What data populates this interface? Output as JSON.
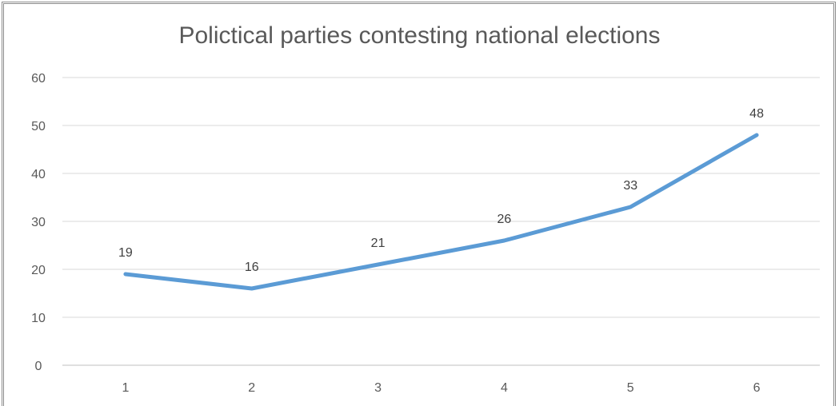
{
  "chart_data": {
    "type": "line",
    "title": "Polictical parties contesting national elections",
    "xlabel": "",
    "ylabel": "",
    "categories": [
      "1",
      "2",
      "3",
      "4",
      "5",
      "6"
    ],
    "series": [
      {
        "values": [
          19,
          16,
          21,
          26,
          33,
          48
        ],
        "color": "#5b9bd5"
      }
    ],
    "ylim": [
      0,
      60
    ],
    "yticks": [
      0,
      10,
      20,
      30,
      40,
      50,
      60
    ],
    "data_labels": true,
    "grid": true,
    "legend": "none",
    "colors": {
      "line": "#5b9bd5",
      "grid": "#d9d9d9",
      "text": "#595959"
    }
  }
}
